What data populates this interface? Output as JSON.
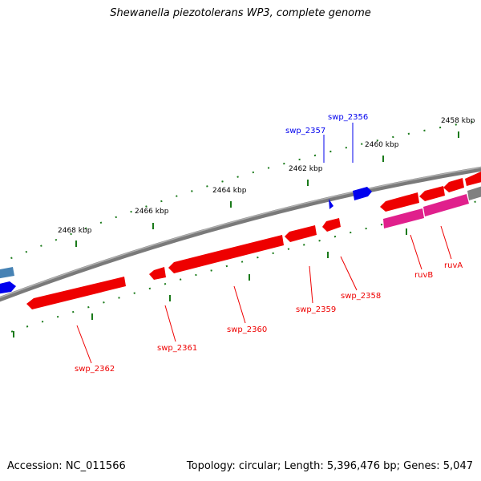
{
  "title": "Shewanella piezotolerans WP3, complete genome",
  "footer": {
    "accession": "Accession: NC_011566",
    "summary": "Topology: circular; Length: 5,396,476 bp; Genes: 5,047"
  },
  "colors": {
    "backbone": "#808080",
    "forward_gene": "#0000ee",
    "reverse_gene": "#ee0000",
    "highlight_gene": "#e0208c",
    "tick": "#006400"
  },
  "kbp_labels": [
    "2458 kbp",
    "2460 kbp",
    "2462 kbp",
    "2464 kbp",
    "2466 kbp",
    "2468 kbp"
  ],
  "genes": {
    "forward": [
      "swp_2357",
      "swp_2356"
    ],
    "reverse": [
      "swp_2358",
      "swp_2359",
      "swp_2360",
      "swp_2361",
      "swp_2362",
      "ruvB",
      "ruvA"
    ]
  }
}
